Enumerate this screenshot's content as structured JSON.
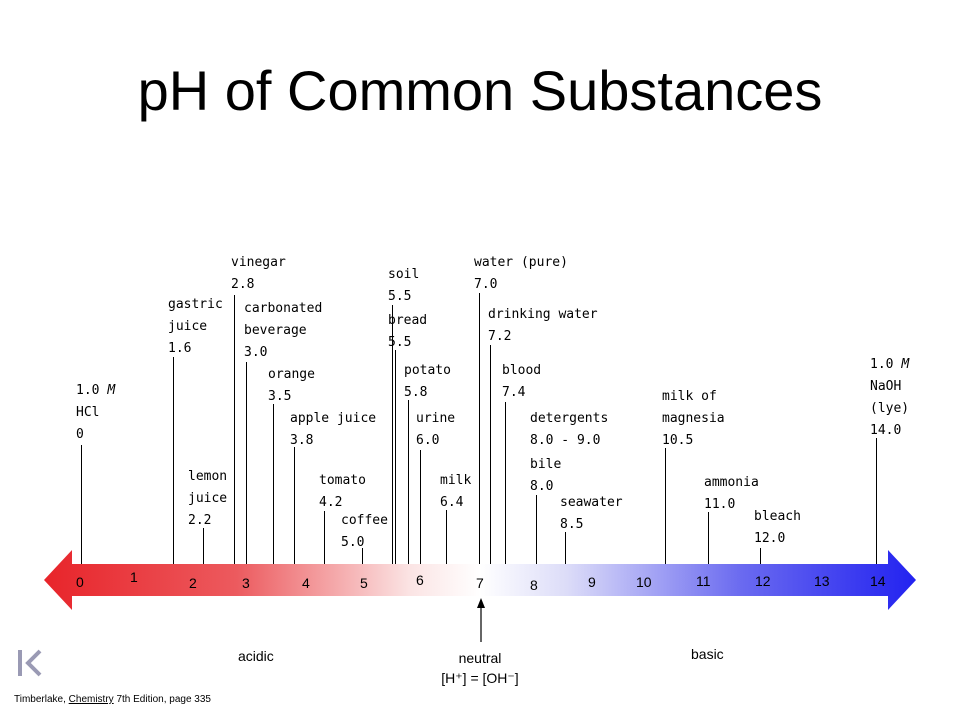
{
  "title": "pH of Common Substances",
  "substances": [
    {
      "name": "1.0 M\nHCl",
      "ph": "0"
    },
    {
      "name": "gastric\njuice",
      "ph": "1.6"
    },
    {
      "name": "lemon\njuice",
      "ph": "2.2"
    },
    {
      "name": "vinegar",
      "ph": "2.8"
    },
    {
      "name": "carbonated\nbeverage",
      "ph": "3.0"
    },
    {
      "name": "orange",
      "ph": "3.5"
    },
    {
      "name": "apple juice",
      "ph": "3.8"
    },
    {
      "name": "tomato",
      "ph": "4.2"
    },
    {
      "name": "coffee",
      "ph": "5.0"
    },
    {
      "name": "soil",
      "ph": "5.5"
    },
    {
      "name": "bread",
      "ph": "5.5"
    },
    {
      "name": "potato",
      "ph": "5.8"
    },
    {
      "name": "urine",
      "ph": "6.0"
    },
    {
      "name": "milk",
      "ph": "6.4"
    },
    {
      "name": "water (pure)",
      "ph": "7.0"
    },
    {
      "name": "drinking water",
      "ph": "7.2"
    },
    {
      "name": "blood",
      "ph": "7.4"
    },
    {
      "name": "detergents",
      "ph": "8.0 - 9.0"
    },
    {
      "name": "bile",
      "ph": "8.0"
    },
    {
      "name": "seawater",
      "ph": "8.5"
    },
    {
      "name": "milk of\nmagnesia",
      "ph": "10.5"
    },
    {
      "name": "ammonia",
      "ph": "11.0"
    },
    {
      "name": "bleach",
      "ph": "12.0"
    },
    {
      "name": "1.0 M\nNaOH\n(lye)",
      "ph": "14.0"
    }
  ],
  "scale_numbers": [
    "0",
    "1",
    "2",
    "3",
    "4",
    "5",
    "6",
    "7",
    "8",
    "9",
    "10",
    "11",
    "12",
    "13",
    "14"
  ],
  "regions": {
    "acidic": "acidic",
    "basic": "basic",
    "neutral": "neutral",
    "neutral_formula": "[H⁺] = [OH⁻]"
  },
  "credit": {
    "author": "Timberlake, ",
    "book": "Chemistry",
    "edition": " 7th Edition, page 335"
  },
  "colors": {
    "acid": "#e8242a",
    "base": "#2b2bf0",
    "neutral": "#ffffff"
  }
}
